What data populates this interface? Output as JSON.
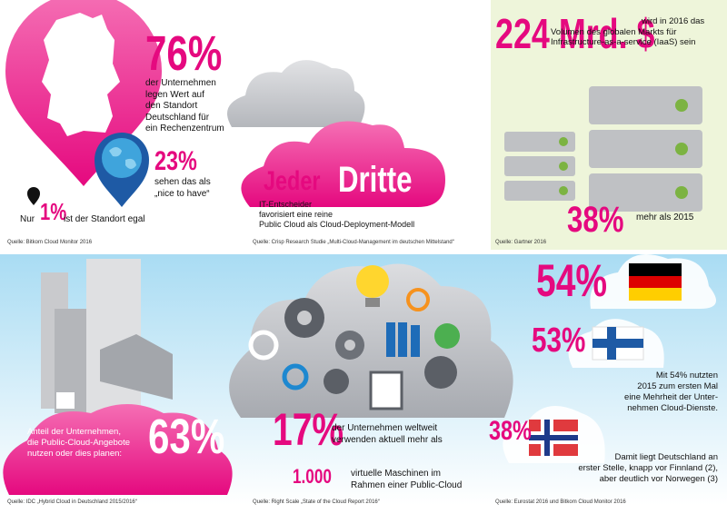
{
  "panels": {
    "location": {
      "headline": "76%",
      "headline_lines": [
        "der Unternehmen",
        "legen Wert auf",
        "den Standort",
        "Deutschland für",
        "ein Rechenzentrum"
      ],
      "second": "23%",
      "second_lines": [
        "sehen das als",
        "„nice to have“"
      ],
      "third_prefix": "Nur",
      "third": "1%",
      "third_text": "ist der Standort egal",
      "source": "Quelle: Bitkom Cloud Monitor 2016"
    },
    "deployment": {
      "word1": "Jeder",
      "word2": "Dritte",
      "lines": [
        "IT-Entscheider",
        "favorisiert eine reine",
        "Public Cloud als Cloud-Deployment-Modell"
      ],
      "source": "Quelle: Crisp Research Studie „Multi-Cloud-Management im deutschen Mittelstand“"
    },
    "market": {
      "headline": "224 Mrd. $",
      "lines": [
        "wird in 2016 das",
        "Volumen des globalen Markts für",
        "Infrastructure-as-a-service (IaaS) sein"
      ],
      "growth": "38%",
      "growth_text": "mehr als 2015",
      "source": "Quelle: Gartner 2016"
    },
    "usage": {
      "lines": [
        "Anteil der Unternehmen,",
        "die Public-Cloud-Angebote",
        "nutzen oder dies planen:"
      ],
      "headline": "63%",
      "source": "Quelle: IDC „Hybrid Cloud in Deutschland 2015/2016“"
    },
    "vms": {
      "headline": "17%",
      "lines": [
        "der Unternehmen weltweit",
        "verwenden aktuell mehr als"
      ],
      "count": "1.000",
      "count_lines": [
        "virtuelle Maschinen im",
        "Rahmen einer Public-Cloud"
      ],
      "source": "Quelle: Right Scale „State of the Cloud Report 2016“"
    },
    "countries": {
      "germany": "54%",
      "finland": "53%",
      "norway": "38%",
      "note1": [
        "Mit 54% nutzten",
        "2015 zum ersten Mal",
        "eine Mehrheit der Unter-",
        "nehmen Cloud-Dienste."
      ],
      "note2": [
        "Damit liegt Deutschland an",
        "erster Stelle, knapp vor Finnland (2),",
        "aber deutlich vor Norwegen (3)"
      ],
      "source": "Quelle: Eurostat 2016 und Bitkom Cloud Monitor 2016"
    }
  }
}
